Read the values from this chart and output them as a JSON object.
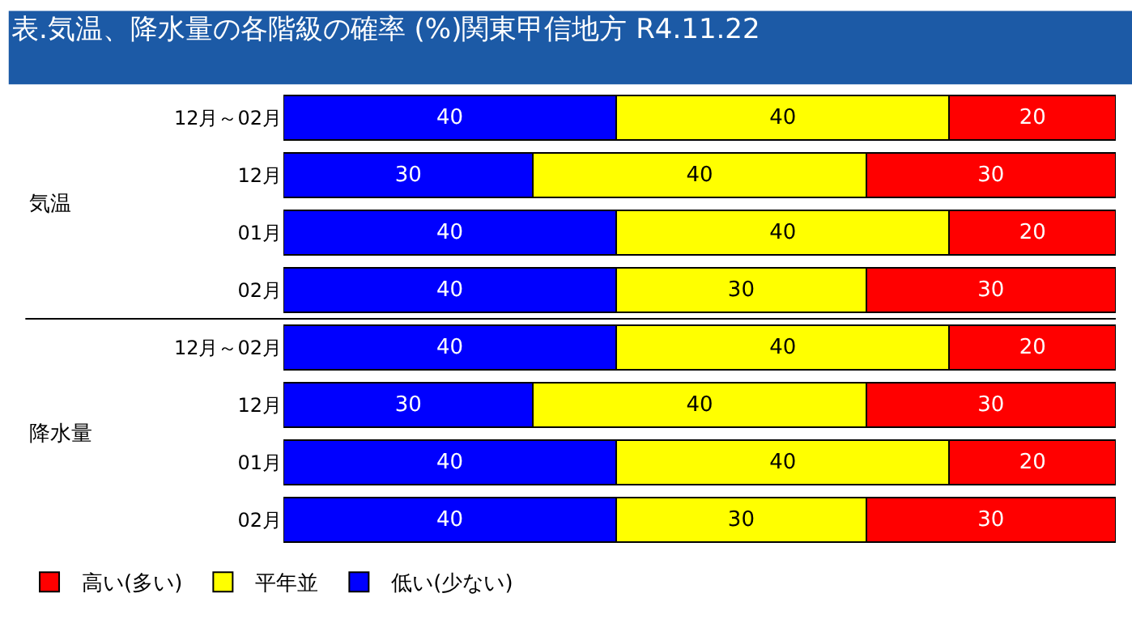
{
  "chart_data": {
    "type": "bar",
    "orientation": "horizontal",
    "stacked": true,
    "title": "表.気温、降水量の各階級の確率 (%)関東甲信地方 R4.11.22",
    "categories": [
      "12月～02月",
      "12月",
      "01月",
      "02月",
      "12月～02月",
      "12月",
      "01月",
      "02月"
    ],
    "series": [
      {
        "name": "低い(少ない)",
        "color": "#0000ff",
        "values": [
          40,
          30,
          40,
          40,
          40,
          30,
          40,
          40
        ]
      },
      {
        "name": "平年並",
        "color": "#ffff00",
        "values": [
          40,
          40,
          40,
          30,
          40,
          40,
          40,
          30
        ]
      },
      {
        "name": "高い(多い)",
        "color": "#ff0000",
        "values": [
          20,
          30,
          20,
          30,
          20,
          30,
          20,
          30
        ]
      }
    ],
    "xlim": [
      0,
      100
    ],
    "data_labels": true,
    "legend": "bottom left",
    "tick_labels": "y",
    "annotations": [
      "気温",
      "降水量"
    ]
  }
}
